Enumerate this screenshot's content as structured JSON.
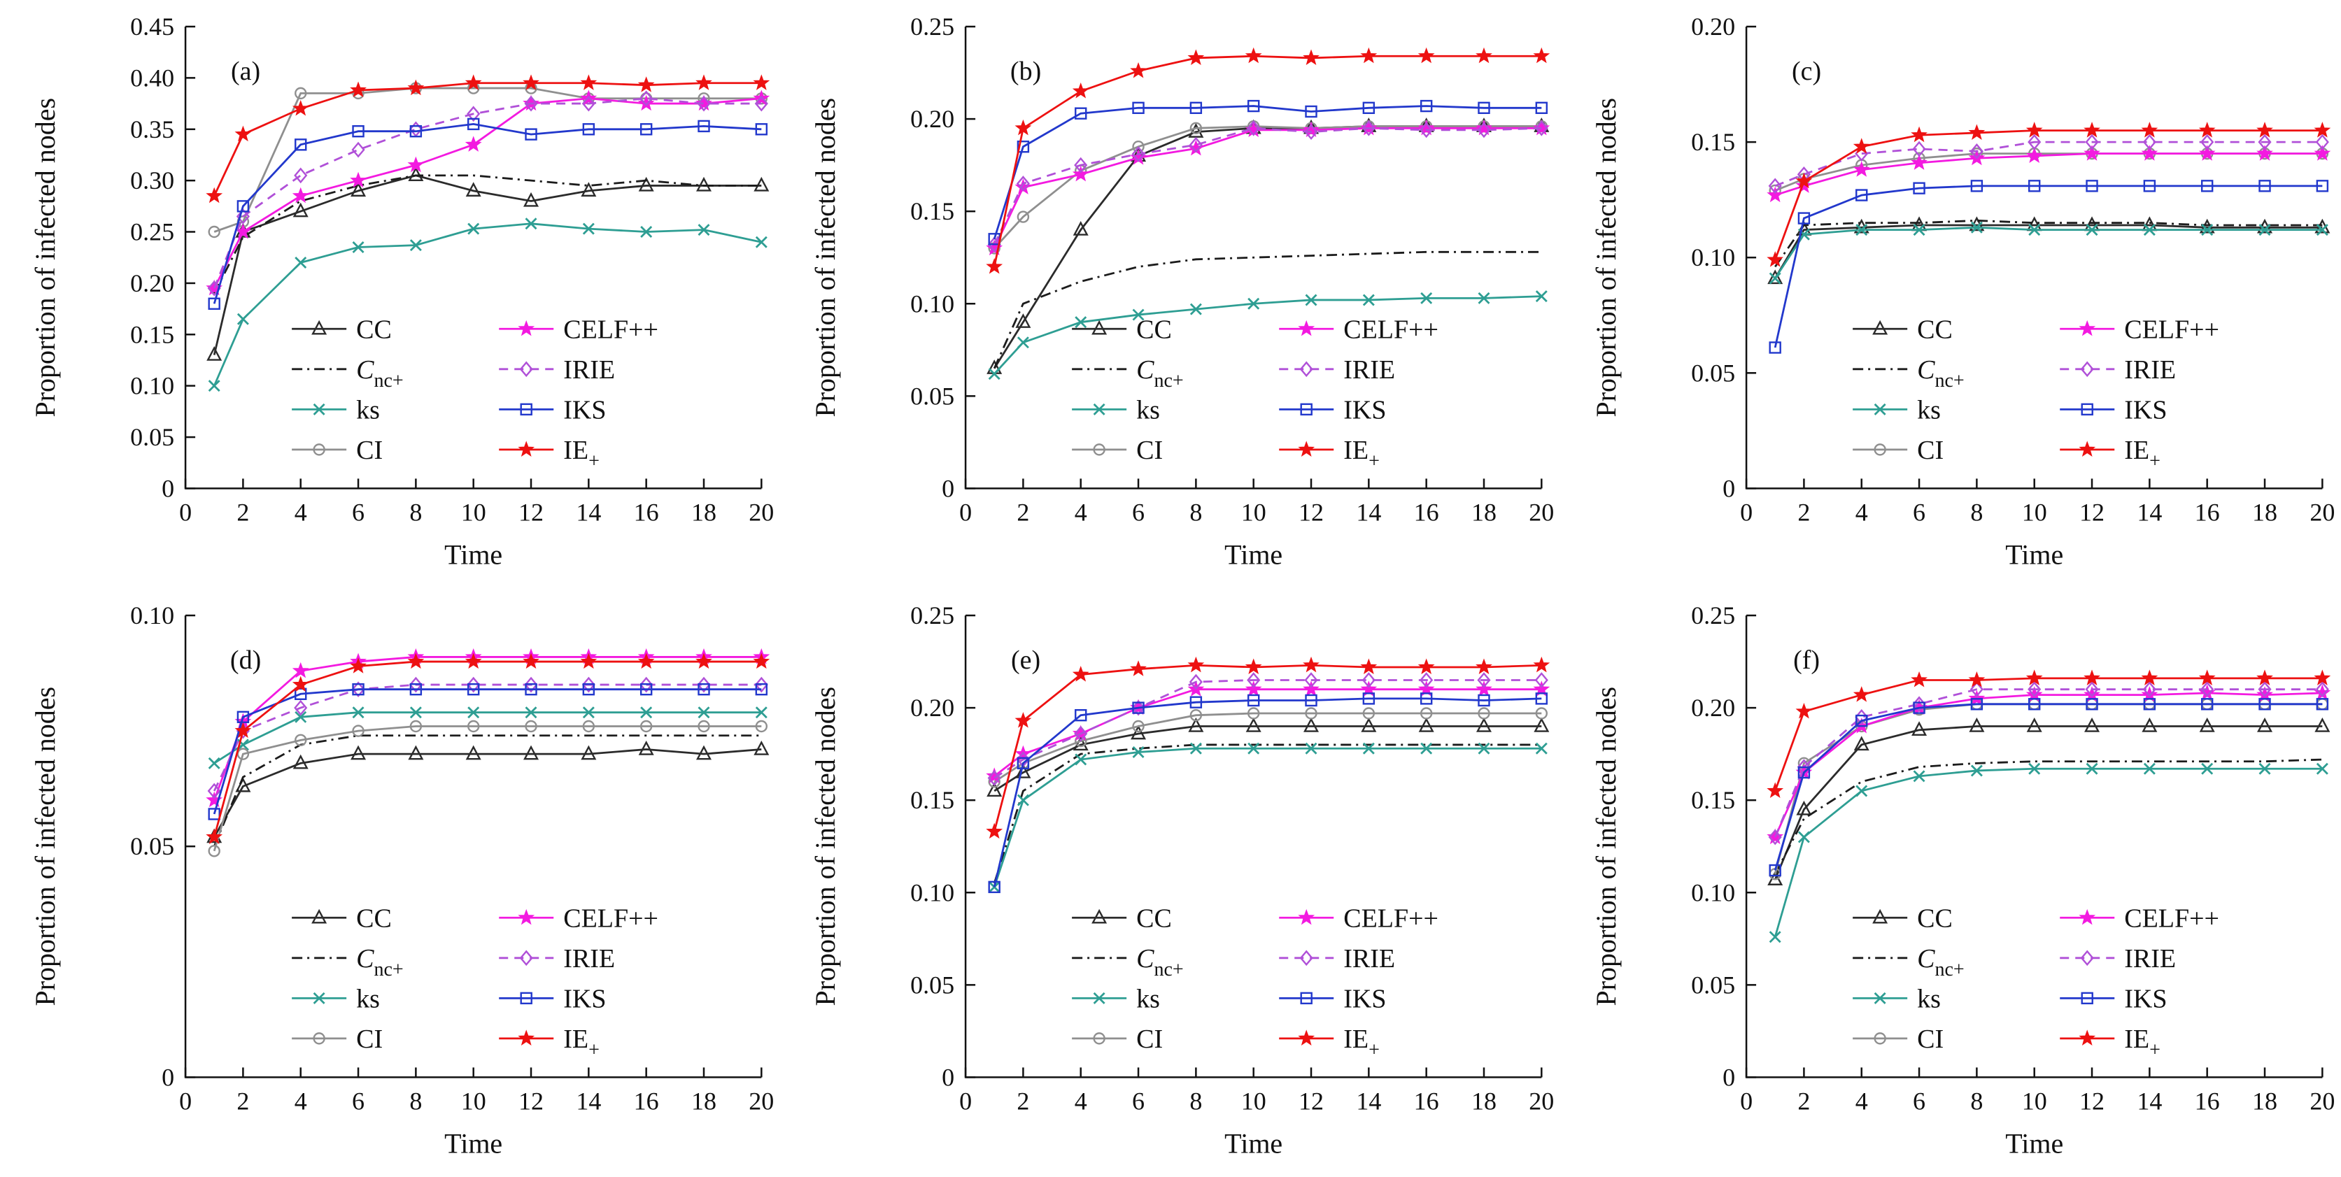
{
  "figure": {
    "xlabel": "Time",
    "ylabel": "Proportion of infected nodes",
    "xlim": [
      0,
      20
    ],
    "x_ticks": [
      0,
      2,
      4,
      6,
      8,
      10,
      12,
      14,
      16,
      18,
      20
    ],
    "x": [
      1,
      2,
      4,
      6,
      8,
      10,
      12,
      14,
      16,
      18,
      20
    ],
    "background": "#ffffff",
    "axis_color": "#111111",
    "legend_columns": [
      [
        "CC",
        "Cnc",
        "ks",
        "CI"
      ],
      [
        "CELF",
        "IRIE",
        "IKS",
        "IE"
      ]
    ]
  },
  "series_styles": {
    "CC": {
      "label": "CC",
      "color": "#2b2b2b",
      "marker": "triangle",
      "line": "solid"
    },
    "Cnc": {
      "label_main": "C",
      "label_sub": "nc+",
      "italic": true,
      "color": "#1c1c1c",
      "marker": "none",
      "line": "dashdot"
    },
    "ks": {
      "label": "ks",
      "color": "#2e9e93",
      "marker": "x",
      "line": "solid"
    },
    "CI": {
      "label": "CI",
      "color": "#8f8f8f",
      "marker": "circle",
      "line": "solid"
    },
    "CELF": {
      "label": "CELF++",
      "color": "#f31ae0",
      "marker": "star",
      "line": "solid"
    },
    "IRIE": {
      "label": "IRIE",
      "color": "#b050d8",
      "marker": "diamond",
      "line": "dashed"
    },
    "IKS": {
      "label": "IKS",
      "color": "#2238cc",
      "marker": "square",
      "line": "solid"
    },
    "IE": {
      "label_main": "IE",
      "label_sub": "+",
      "italic": false,
      "color": "#ed1111",
      "marker": "star",
      "line": "solid"
    }
  },
  "chart_data": [
    {
      "type": "line",
      "panel": "(a)",
      "xlabel": "Time",
      "ylabel": "Proportion of infected nodes",
      "ylim": [
        0,
        0.45
      ],
      "y_ticks": [
        0,
        0.05,
        0.1,
        0.15,
        0.2,
        0.25,
        0.3,
        0.35,
        0.4,
        0.45
      ],
      "series": [
        {
          "name": "CC",
          "values": [
            0.13,
            0.25,
            0.27,
            0.29,
            0.305,
            0.29,
            0.28,
            0.29,
            0.295,
            0.295,
            0.295
          ]
        },
        {
          "name": "Cnc",
          "values": [
            0.19,
            0.245,
            0.28,
            0.295,
            0.305,
            0.305,
            0.3,
            0.295,
            0.3,
            0.295,
            0.295
          ]
        },
        {
          "name": "ks",
          "values": [
            0.1,
            0.165,
            0.22,
            0.235,
            0.237,
            0.253,
            0.258,
            0.253,
            0.25,
            0.252,
            0.24
          ]
        },
        {
          "name": "CI",
          "values": [
            0.25,
            0.26,
            0.385,
            0.385,
            0.39,
            0.39,
            0.39,
            0.38,
            0.38,
            0.38,
            0.38
          ]
        },
        {
          "name": "CELF",
          "values": [
            0.195,
            0.25,
            0.285,
            0.3,
            0.315,
            0.335,
            0.375,
            0.38,
            0.375,
            0.375,
            0.38
          ]
        },
        {
          "name": "IRIE",
          "values": [
            0.195,
            0.265,
            0.305,
            0.33,
            0.35,
            0.365,
            0.375,
            0.375,
            0.38,
            0.375,
            0.375
          ]
        },
        {
          "name": "IKS",
          "values": [
            0.18,
            0.275,
            0.335,
            0.348,
            0.348,
            0.355,
            0.345,
            0.35,
            0.35,
            0.353,
            0.35
          ]
        },
        {
          "name": "IE",
          "values": [
            0.285,
            0.345,
            0.37,
            0.388,
            0.39,
            0.395,
            0.395,
            0.395,
            0.393,
            0.395,
            0.395
          ]
        }
      ]
    },
    {
      "type": "line",
      "panel": "(b)",
      "xlabel": "Time",
      "ylabel": "Proportion of infected nodes",
      "ylim": [
        0,
        0.25
      ],
      "y_ticks": [
        0,
        0.05,
        0.1,
        0.15,
        0.2,
        0.25
      ],
      "series": [
        {
          "name": "CC",
          "values": [
            0.065,
            0.09,
            0.14,
            0.18,
            0.193,
            0.195,
            0.195,
            0.196,
            0.196,
            0.196,
            0.196
          ]
        },
        {
          "name": "Cnc",
          "values": [
            0.065,
            0.1,
            0.112,
            0.12,
            0.124,
            0.125,
            0.126,
            0.127,
            0.128,
            0.128,
            0.128
          ]
        },
        {
          "name": "ks",
          "values": [
            0.062,
            0.079,
            0.09,
            0.094,
            0.097,
            0.1,
            0.102,
            0.102,
            0.103,
            0.103,
            0.104
          ]
        },
        {
          "name": "CI",
          "values": [
            0.13,
            0.147,
            0.172,
            0.185,
            0.195,
            0.196,
            0.195,
            0.196,
            0.196,
            0.196,
            0.196
          ]
        },
        {
          "name": "CELF",
          "values": [
            0.13,
            0.163,
            0.17,
            0.179,
            0.184,
            0.194,
            0.194,
            0.195,
            0.195,
            0.195,
            0.195
          ]
        },
        {
          "name": "IRIE",
          "values": [
            0.132,
            0.165,
            0.175,
            0.181,
            0.186,
            0.195,
            0.193,
            0.195,
            0.194,
            0.194,
            0.195
          ]
        },
        {
          "name": "IKS",
          "values": [
            0.135,
            0.185,
            0.203,
            0.206,
            0.206,
            0.207,
            0.204,
            0.206,
            0.207,
            0.206,
            0.206
          ]
        },
        {
          "name": "IE",
          "values": [
            0.12,
            0.195,
            0.215,
            0.226,
            0.233,
            0.234,
            0.233,
            0.234,
            0.234,
            0.234,
            0.234
          ]
        }
      ]
    },
    {
      "type": "line",
      "panel": "(c)",
      "xlabel": "Time",
      "ylabel": "Proportion of infected nodes",
      "ylim": [
        0,
        0.2
      ],
      "y_ticks": [
        0,
        0.05,
        0.1,
        0.15,
        0.2
      ],
      "series": [
        {
          "name": "CC",
          "values": [
            0.091,
            0.112,
            0.113,
            0.114,
            0.114,
            0.114,
            0.114,
            0.114,
            0.113,
            0.113,
            0.113
          ]
        },
        {
          "name": "Cnc",
          "values": [
            0.096,
            0.114,
            0.115,
            0.115,
            0.116,
            0.115,
            0.115,
            0.115,
            0.114,
            0.114,
            0.114
          ]
        },
        {
          "name": "ks",
          "values": [
            0.091,
            0.11,
            0.112,
            0.112,
            0.113,
            0.112,
            0.112,
            0.112,
            0.112,
            0.112,
            0.112
          ]
        },
        {
          "name": "CI",
          "values": [
            0.129,
            0.134,
            0.14,
            0.143,
            0.145,
            0.145,
            0.145,
            0.145,
            0.145,
            0.145,
            0.145
          ]
        },
        {
          "name": "CELF",
          "values": [
            0.127,
            0.131,
            0.138,
            0.141,
            0.143,
            0.144,
            0.145,
            0.145,
            0.145,
            0.145,
            0.145
          ]
        },
        {
          "name": "IRIE",
          "values": [
            0.131,
            0.136,
            0.145,
            0.147,
            0.146,
            0.15,
            0.15,
            0.15,
            0.15,
            0.15,
            0.15
          ]
        },
        {
          "name": "IKS",
          "values": [
            0.061,
            0.117,
            0.127,
            0.13,
            0.131,
            0.131,
            0.131,
            0.131,
            0.131,
            0.131,
            0.131
          ]
        },
        {
          "name": "IE",
          "values": [
            0.099,
            0.133,
            0.148,
            0.153,
            0.154,
            0.155,
            0.155,
            0.155,
            0.155,
            0.155,
            0.155
          ]
        }
      ]
    },
    {
      "type": "line",
      "panel": "(d)",
      "xlabel": "Time",
      "ylabel": "Proportion of infected nodes",
      "ylim": [
        0,
        0.1
      ],
      "y_ticks": [
        0,
        0.05,
        0.1
      ],
      "series": [
        {
          "name": "CC",
          "values": [
            0.052,
            0.063,
            0.068,
            0.07,
            0.07,
            0.07,
            0.07,
            0.07,
            0.071,
            0.07,
            0.071
          ]
        },
        {
          "name": "Cnc",
          "values": [
            0.05,
            0.065,
            0.072,
            0.074,
            0.074,
            0.074,
            0.074,
            0.074,
            0.074,
            0.074,
            0.074
          ]
        },
        {
          "name": "ks",
          "values": [
            0.068,
            0.072,
            0.078,
            0.079,
            0.079,
            0.079,
            0.079,
            0.079,
            0.079,
            0.079,
            0.079
          ]
        },
        {
          "name": "CI",
          "values": [
            0.049,
            0.07,
            0.073,
            0.075,
            0.076,
            0.076,
            0.076,
            0.076,
            0.076,
            0.076,
            0.076
          ]
        },
        {
          "name": "CELF",
          "values": [
            0.06,
            0.077,
            0.088,
            0.09,
            0.091,
            0.091,
            0.091,
            0.091,
            0.091,
            0.091,
            0.091
          ]
        },
        {
          "name": "IRIE",
          "values": [
            0.062,
            0.075,
            0.08,
            0.084,
            0.085,
            0.085,
            0.085,
            0.085,
            0.085,
            0.085,
            0.085
          ]
        },
        {
          "name": "IKS",
          "values": [
            0.057,
            0.078,
            0.083,
            0.084,
            0.084,
            0.084,
            0.084,
            0.084,
            0.084,
            0.084,
            0.084
          ]
        },
        {
          "name": "IE",
          "values": [
            0.052,
            0.075,
            0.085,
            0.089,
            0.09,
            0.09,
            0.09,
            0.09,
            0.09,
            0.09,
            0.09
          ]
        }
      ]
    },
    {
      "type": "line",
      "panel": "(e)",
      "xlabel": "Time",
      "ylabel": "Proportion of infected nodes",
      "ylim": [
        0,
        0.25
      ],
      "y_ticks": [
        0,
        0.05,
        0.1,
        0.15,
        0.2,
        0.25
      ],
      "series": [
        {
          "name": "CC",
          "values": [
            0.155,
            0.165,
            0.18,
            0.186,
            0.19,
            0.19,
            0.19,
            0.19,
            0.19,
            0.19,
            0.19
          ]
        },
        {
          "name": "Cnc",
          "values": [
            0.105,
            0.155,
            0.175,
            0.178,
            0.18,
            0.18,
            0.18,
            0.18,
            0.18,
            0.18,
            0.18
          ]
        },
        {
          "name": "ks",
          "values": [
            0.103,
            0.15,
            0.172,
            0.176,
            0.178,
            0.178,
            0.178,
            0.178,
            0.178,
            0.178,
            0.178
          ]
        },
        {
          "name": "CI",
          "values": [
            0.16,
            0.17,
            0.182,
            0.19,
            0.196,
            0.197,
            0.197,
            0.197,
            0.197,
            0.197,
            0.197
          ]
        },
        {
          "name": "CELF",
          "values": [
            0.163,
            0.175,
            0.186,
            0.2,
            0.21,
            0.21,
            0.21,
            0.21,
            0.21,
            0.21,
            0.21
          ]
        },
        {
          "name": "IRIE",
          "values": [
            0.162,
            0.172,
            0.186,
            0.2,
            0.214,
            0.215,
            0.215,
            0.215,
            0.215,
            0.215,
            0.215
          ]
        },
        {
          "name": "IKS",
          "values": [
            0.103,
            0.17,
            0.196,
            0.2,
            0.203,
            0.204,
            0.204,
            0.205,
            0.205,
            0.204,
            0.205
          ]
        },
        {
          "name": "IE",
          "values": [
            0.133,
            0.193,
            0.218,
            0.221,
            0.223,
            0.222,
            0.223,
            0.222,
            0.222,
            0.222,
            0.223
          ]
        }
      ]
    },
    {
      "type": "line",
      "panel": "(f)",
      "xlabel": "Time",
      "ylabel": "Proportion of infected nodes",
      "ylim": [
        0,
        0.25
      ],
      "y_ticks": [
        0,
        0.05,
        0.1,
        0.15,
        0.2,
        0.25
      ],
      "series": [
        {
          "name": "CC",
          "values": [
            0.107,
            0.145,
            0.18,
            0.188,
            0.19,
            0.19,
            0.19,
            0.19,
            0.19,
            0.19,
            0.19
          ]
        },
        {
          "name": "Cnc",
          "values": [
            0.11,
            0.14,
            0.16,
            0.168,
            0.17,
            0.171,
            0.171,
            0.171,
            0.171,
            0.171,
            0.172
          ]
        },
        {
          "name": "ks",
          "values": [
            0.076,
            0.13,
            0.155,
            0.163,
            0.166,
            0.167,
            0.167,
            0.167,
            0.167,
            0.167,
            0.167
          ]
        },
        {
          "name": "CI",
          "values": [
            0.11,
            0.17,
            0.19,
            0.199,
            0.202,
            0.202,
            0.202,
            0.202,
            0.202,
            0.202,
            0.202
          ]
        },
        {
          "name": "CELF",
          "values": [
            0.13,
            0.165,
            0.19,
            0.2,
            0.205,
            0.207,
            0.207,
            0.207,
            0.208,
            0.207,
            0.208
          ]
        },
        {
          "name": "IRIE",
          "values": [
            0.13,
            0.168,
            0.195,
            0.202,
            0.21,
            0.21,
            0.21,
            0.21,
            0.21,
            0.21,
            0.21
          ]
        },
        {
          "name": "IKS",
          "values": [
            0.112,
            0.165,
            0.193,
            0.2,
            0.202,
            0.202,
            0.202,
            0.202,
            0.202,
            0.202,
            0.202
          ]
        },
        {
          "name": "IE",
          "values": [
            0.155,
            0.198,
            0.207,
            0.215,
            0.215,
            0.216,
            0.216,
            0.216,
            0.216,
            0.216,
            0.216
          ]
        }
      ]
    }
  ]
}
